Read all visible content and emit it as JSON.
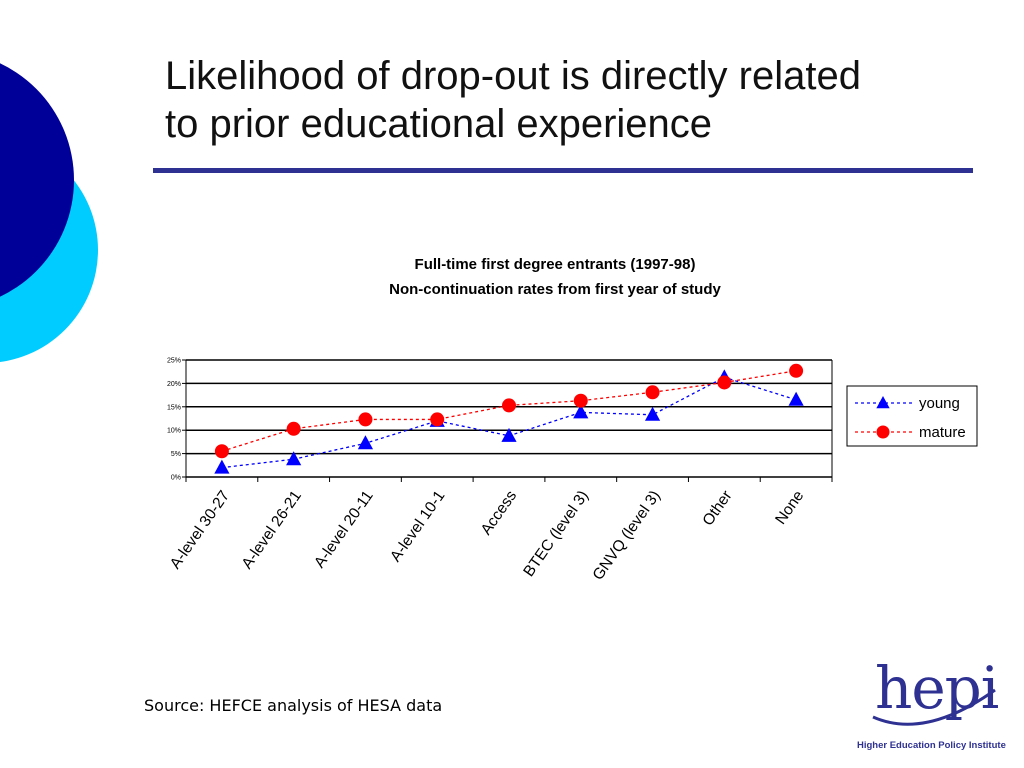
{
  "slide": {
    "title_line1": "Likelihood of drop-out is directly related",
    "title_line2": "to prior educational experience",
    "source": "Source: HEFCE analysis of HESA data"
  },
  "colors": {
    "circle_navy": "#000099",
    "circle_cyan": "#00ccff",
    "rule": "#2e3192",
    "young": "#0000ff",
    "mature": "#ff0000"
  },
  "logo": {
    "word": "hepi",
    "subtitle": "Higher Education Policy Institute"
  },
  "chart_data": {
    "type": "line",
    "title": "Full-time first degree entrants (1997-98)",
    "subtitle": "Non-continuation rates from first year of study",
    "categories": [
      "A-level 30-27",
      "A-level 26-21",
      "A-level 20-11",
      "A-level 10-1",
      "Access",
      "BTEC (level 3)",
      "GNVQ (level 3)",
      "Other",
      "None"
    ],
    "y_ticks": [
      "25%",
      "20%",
      "15%",
      "10%",
      "5%",
      "0%"
    ],
    "ylim": [
      0,
      25
    ],
    "grid": true,
    "legend_position": "right",
    "series": [
      {
        "name": "young",
        "marker": "triangle",
        "color": "#0000ff",
        "values": [
          2.0,
          3.8,
          7.2,
          12.0,
          8.8,
          13.8,
          13.3,
          21.3,
          16.5
        ]
      },
      {
        "name": "mature",
        "marker": "circle",
        "color": "#ff0000",
        "values": [
          5.5,
          10.3,
          12.3,
          12.3,
          15.3,
          16.3,
          18.1,
          20.2,
          22.7
        ]
      }
    ]
  }
}
